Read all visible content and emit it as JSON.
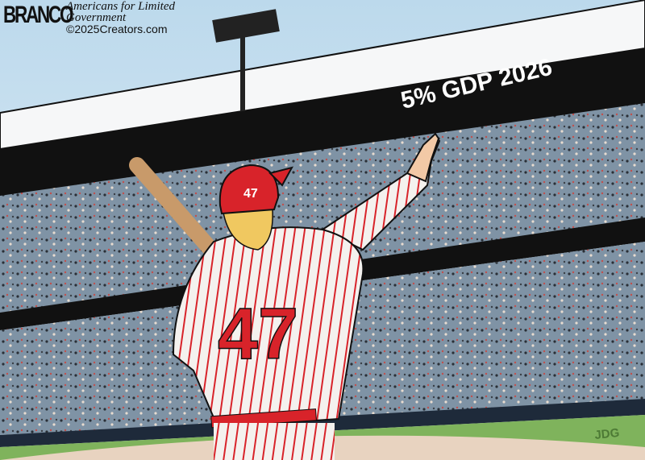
{
  "signature": {
    "artist": "BRANCO",
    "line1": "Americans for Limited",
    "line2": "Government",
    "line3": "©2025Creators.com"
  },
  "banner": {
    "text": "5% GDP 2026"
  },
  "player": {
    "cap_number": "47",
    "jersey_number": "47"
  },
  "colorist_initials": "JDG",
  "colors": {
    "sky": "#cfe4f1",
    "facade": "#111111",
    "crowd": "#7c8fa0",
    "grass": "#7fb35c",
    "dirt": "#e8d3c0",
    "jersey_stripe": "#d8232a",
    "cap": "#d8232a",
    "bat": "#c89a6a"
  }
}
